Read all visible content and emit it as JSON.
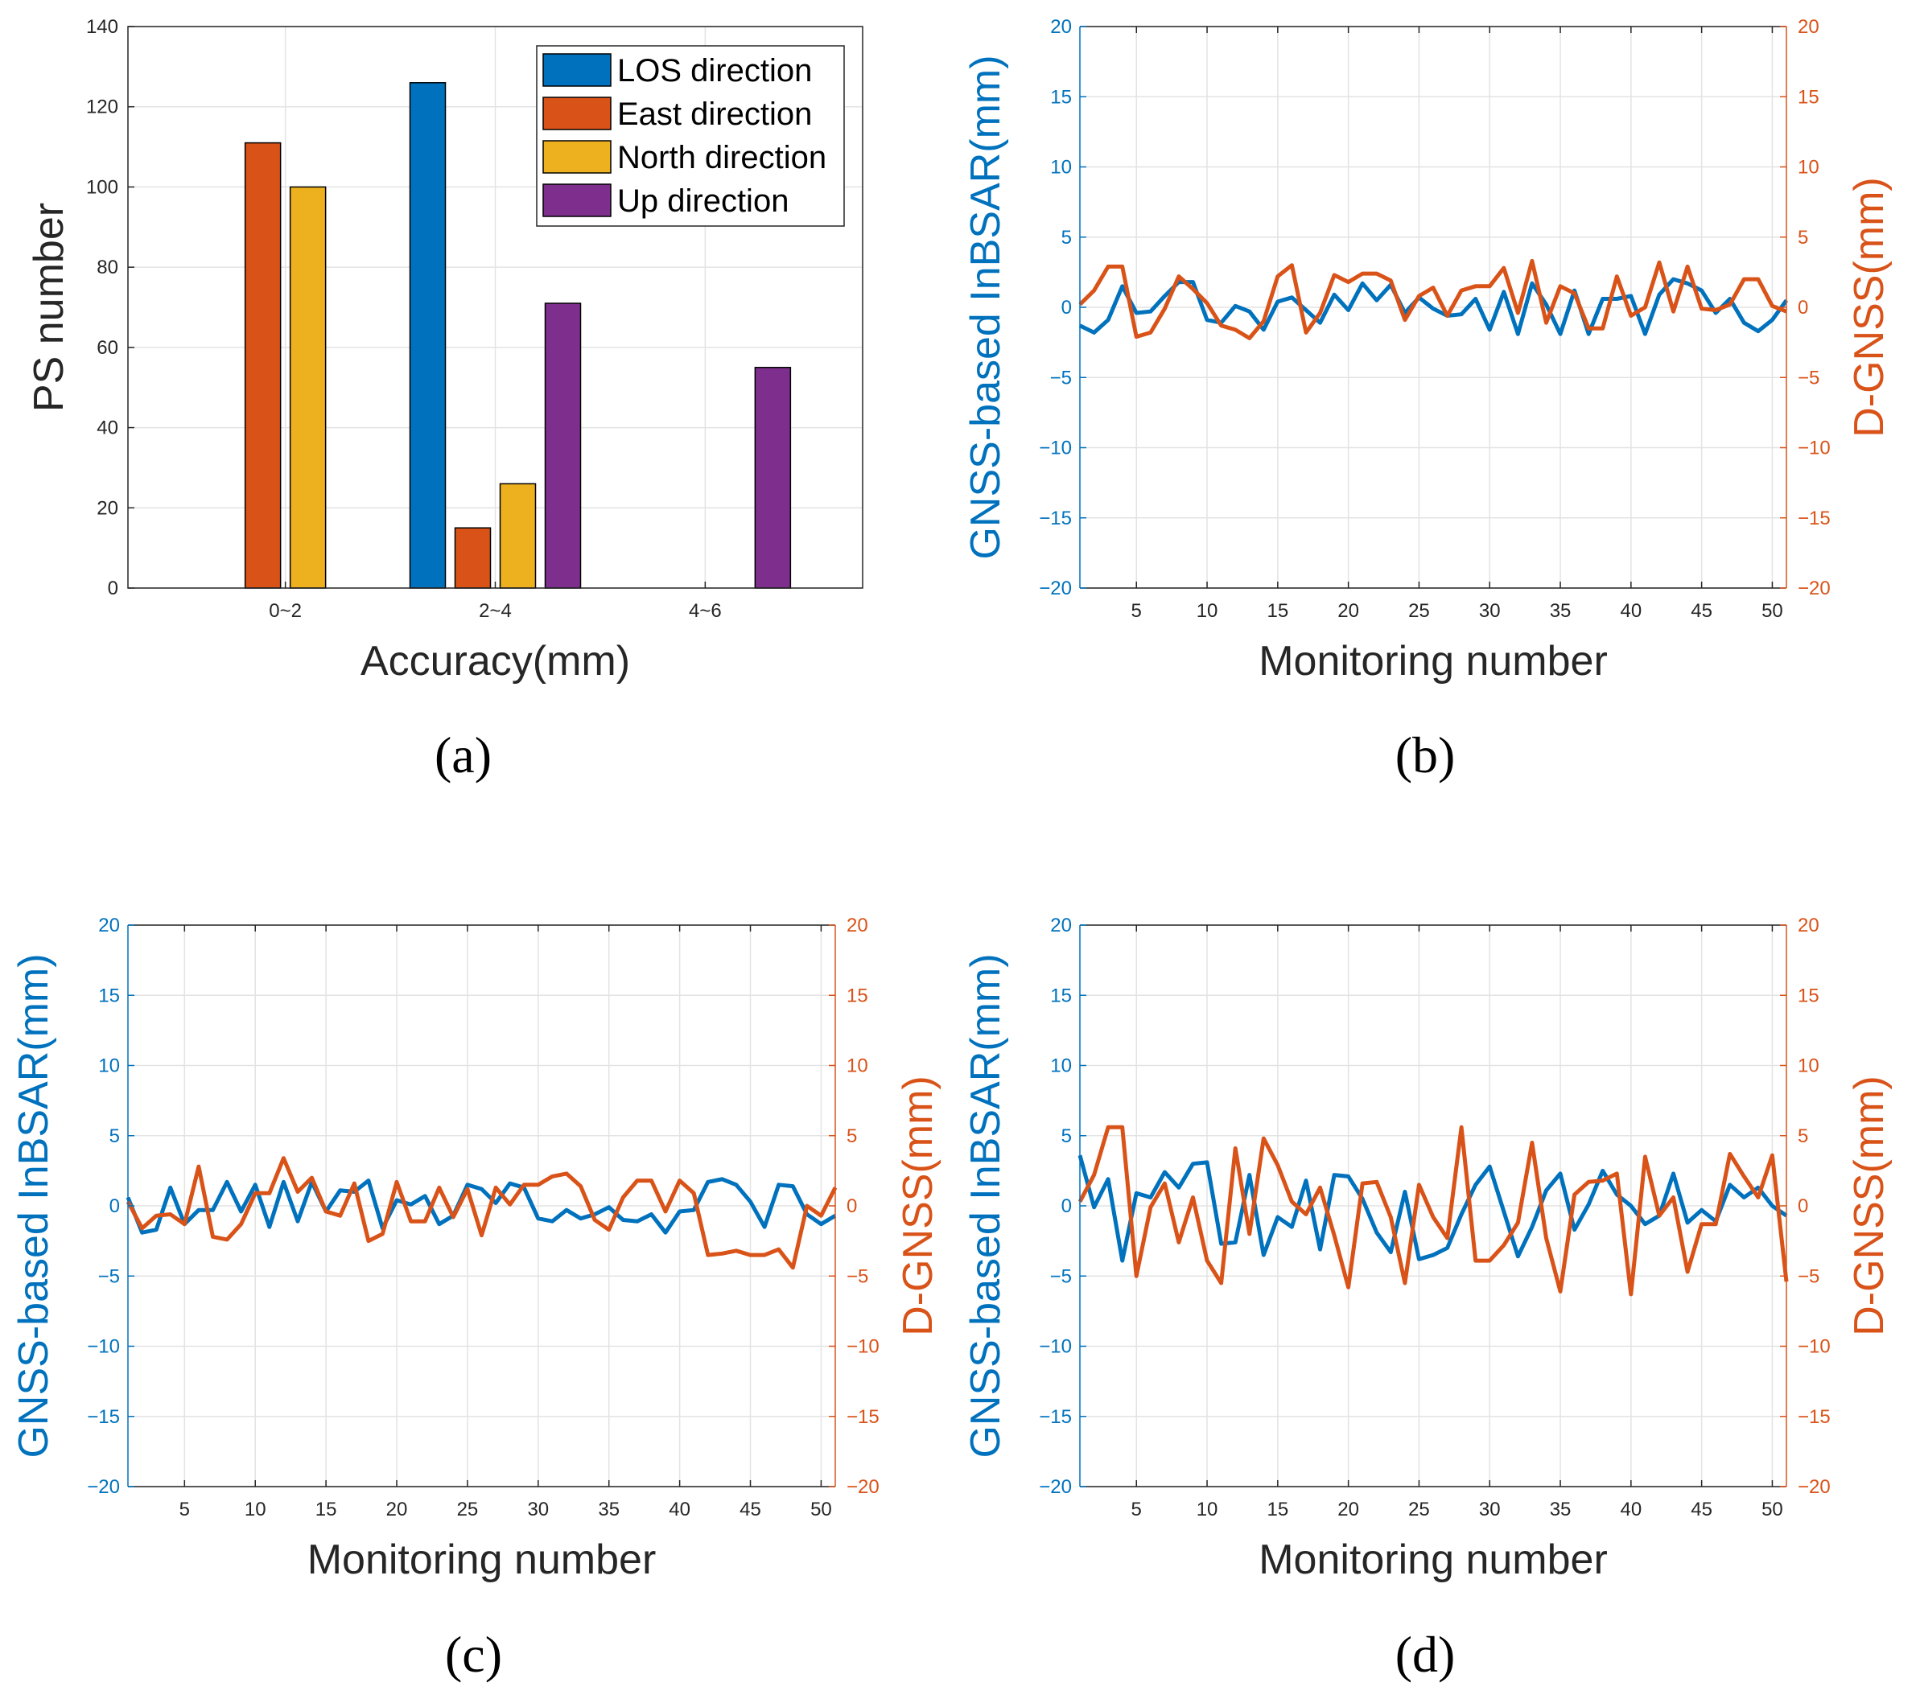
{
  "colors": {
    "los": "#0072BD",
    "east": "#D95319",
    "north": "#EDB120",
    "up": "#7E2F8E",
    "insar": "#0072BD",
    "dgnss": "#D95319",
    "grid": "#e3e3e3",
    "axis": "#262626"
  },
  "chart_data": [
    {
      "panel": "a",
      "type": "bar",
      "label": "(a)",
      "xlabel": "Accuracy(mm)",
      "ylabel": "PS number",
      "ylim": [
        0,
        140
      ],
      "yticks": [
        0,
        20,
        40,
        60,
        80,
        100,
        120,
        140
      ],
      "categories": [
        "0~2",
        "2~4",
        "4~6"
      ],
      "legend_position": "top-right",
      "series": [
        {
          "name": "LOS direction",
          "key": "los",
          "values": [
            0,
            126,
            0
          ]
        },
        {
          "name": "East direction",
          "key": "east",
          "values": [
            111,
            15,
            0
          ]
        },
        {
          "name": "North direction",
          "key": "north",
          "values": [
            100,
            26,
            0
          ]
        },
        {
          "name": "Up direction",
          "key": "up",
          "values": [
            0,
            71,
            55
          ]
        }
      ]
    },
    {
      "panel": "b",
      "type": "line",
      "label": "(b)",
      "xlabel": "Monitoring number",
      "ylabel_left": "GNSS-based InBSAR(mm)",
      "ylabel_right": "D-GNSS(mm)",
      "xlim": [
        1,
        51
      ],
      "xticks": [
        5,
        10,
        15,
        20,
        25,
        30,
        35,
        40,
        45,
        50
      ],
      "ylim": [
        -20,
        20
      ],
      "yticks": [
        -20,
        -15,
        -10,
        -5,
        0,
        5,
        10,
        15,
        20
      ],
      "ytick_labels": [
        "−20",
        "−15",
        "−10",
        "−5",
        "0",
        "5",
        "10",
        "15",
        "20"
      ],
      "series": [
        {
          "name": "GNSS-based InBSAR",
          "axis": "left",
          "key": "insar",
          "values": [
            -1.3,
            -1.8,
            -0.9,
            1.5,
            -0.4,
            -0.3,
            0.8,
            1.8,
            1.8,
            -0.9,
            -1.1,
            0.1,
            -0.3,
            -1.6,
            0.4,
            0.7,
            -0.2,
            -1.1,
            0.9,
            -0.2,
            1.7,
            0.5,
            1.6,
            -0.4,
            0.7,
            -0.1,
            -0.6,
            -0.5,
            0.6,
            -1.6,
            1.1,
            -1.9,
            1.7,
            0.2,
            -1.9,
            1.2,
            -1.9,
            0.6,
            0.6,
            0.8,
            -1.9,
            0.9,
            2.0,
            1.7,
            1.2,
            -0.4,
            0.6,
            -1.1,
            -1.7,
            -0.9,
            0.5
          ]
        },
        {
          "name": "D-GNSS",
          "axis": "right",
          "key": "dgnss",
          "values": [
            0.2,
            1.2,
            2.9,
            2.9,
            -2.1,
            -1.8,
            -0.1,
            2.2,
            1.3,
            0.3,
            -1.3,
            -1.6,
            -2.2,
            -1.0,
            2.2,
            3.0,
            -1.8,
            -0.4,
            2.3,
            1.8,
            2.4,
            2.4,
            1.9,
            -0.9,
            0.8,
            1.4,
            -0.6,
            1.2,
            1.5,
            1.5,
            2.8,
            -0.4,
            3.3,
            -1.1,
            1.5,
            1.0,
            -1.5,
            -1.5,
            2.2,
            -0.6,
            0.0,
            3.2,
            -0.3,
            2.9,
            -0.1,
            -0.2,
            0.2,
            2.0,
            2.0,
            0.1,
            -0.3
          ]
        }
      ]
    },
    {
      "panel": "c",
      "type": "line",
      "label": "(c)",
      "xlabel": "Monitoring number",
      "ylabel_left": "GNSS-based InBSAR(mm)",
      "ylabel_right": "D-GNSS(mm)",
      "xlim": [
        1,
        51
      ],
      "xticks": [
        5,
        10,
        15,
        20,
        25,
        30,
        35,
        40,
        45,
        50
      ],
      "ylim": [
        -20,
        20
      ],
      "yticks": [
        -20,
        -15,
        -10,
        -5,
        0,
        5,
        10,
        15,
        20
      ],
      "ytick_labels": [
        "−20",
        "−15",
        "−10",
        "−5",
        "0",
        "5",
        "10",
        "15",
        "20"
      ],
      "series": [
        {
          "name": "GNSS-based InBSAR",
          "axis": "left",
          "key": "insar",
          "values": [
            0.6,
            -1.9,
            -1.7,
            1.3,
            -1.3,
            -0.3,
            -0.3,
            1.7,
            -0.4,
            1.5,
            -1.5,
            1.7,
            -1.1,
            1.7,
            -0.4,
            1.1,
            1.0,
            1.8,
            -1.6,
            0.4,
            0.1,
            0.7,
            -1.3,
            -0.7,
            1.5,
            1.2,
            0.2,
            1.6,
            1.3,
            -0.9,
            -1.1,
            -0.3,
            -0.9,
            -0.6,
            -0.1,
            -1.0,
            -1.1,
            -0.6,
            -1.9,
            -0.4,
            -0.3,
            1.7,
            1.9,
            1.5,
            0.3,
            -1.5,
            1.5,
            1.4,
            -0.6,
            -1.3,
            -0.7
          ]
        },
        {
          "name": "D-GNSS",
          "axis": "right",
          "key": "dgnss",
          "values": [
            0.3,
            -1.6,
            -0.7,
            -0.6,
            -1.3,
            2.8,
            -2.2,
            -2.4,
            -1.3,
            0.9,
            0.9,
            3.4,
            1.0,
            2.0,
            -0.4,
            -0.7,
            1.6,
            -2.5,
            -2.0,
            1.7,
            -1.1,
            -1.1,
            1.3,
            -0.8,
            1.2,
            -2.1,
            1.3,
            0.1,
            1.5,
            1.5,
            2.1,
            2.3,
            1.4,
            -1.0,
            -1.7,
            0.6,
            1.8,
            1.8,
            -0.4,
            1.8,
            0.9,
            -3.5,
            -3.4,
            -3.2,
            -3.5,
            -3.5,
            -3.1,
            -4.4,
            0.0,
            -0.7,
            1.3
          ]
        }
      ]
    },
    {
      "panel": "d",
      "type": "line",
      "label": "(d)",
      "xlabel": "Monitoring number",
      "ylabel_left": "GNSS-based InBSAR(mm)",
      "ylabel_right": "D-GNSS(mm)",
      "xlim": [
        1,
        51
      ],
      "xticks": [
        5,
        10,
        15,
        20,
        25,
        30,
        35,
        40,
        45,
        50
      ],
      "ylim": [
        -20,
        20
      ],
      "yticks": [
        -20,
        -15,
        -10,
        -5,
        0,
        5,
        10,
        15,
        20
      ],
      "ytick_labels": [
        "−20",
        "−15",
        "−10",
        "−5",
        "0",
        "5",
        "10",
        "15",
        "20"
      ],
      "series": [
        {
          "name": "GNSS-based InBSAR",
          "axis": "left",
          "key": "insar",
          "values": [
            3.6,
            -0.1,
            1.9,
            -3.9,
            0.9,
            0.6,
            2.4,
            1.3,
            3.0,
            3.1,
            -2.7,
            -2.6,
            2.2,
            -3.5,
            -0.8,
            -1.5,
            1.8,
            -3.1,
            2.2,
            2.1,
            0.5,
            -1.9,
            -3.3,
            1.0,
            -3.8,
            -3.5,
            -3.0,
            -0.6,
            1.5,
            2.8,
            -0.4,
            -3.6,
            -1.5,
            1.1,
            2.3,
            -1.7,
            0.1,
            2.5,
            0.8,
            0.0,
            -1.3,
            -0.7,
            2.3,
            -1.2,
            -0.3,
            -1.1,
            1.5,
            0.6,
            1.3,
            0.0,
            -0.7
          ]
        },
        {
          "name": "D-GNSS",
          "axis": "right",
          "key": "dgnss",
          "values": [
            0.3,
            2.2,
            5.6,
            5.6,
            -5.0,
            -0.1,
            1.6,
            -2.6,
            0.6,
            -3.9,
            -5.5,
            4.1,
            -2.0,
            4.8,
            2.9,
            0.3,
            -0.6,
            1.3,
            -2.1,
            -5.8,
            1.6,
            1.7,
            -0.8,
            -5.5,
            1.5,
            -0.8,
            -2.3,
            5.6,
            -3.9,
            -3.9,
            -2.8,
            -1.2,
            4.5,
            -2.3,
            -6.1,
            0.8,
            1.7,
            1.8,
            2.3,
            -6.3,
            3.5,
            -0.7,
            0.6,
            -4.7,
            -1.3,
            -1.3,
            3.7,
            2.1,
            0.6,
            3.6,
            -5.4
          ]
        }
      ]
    }
  ]
}
